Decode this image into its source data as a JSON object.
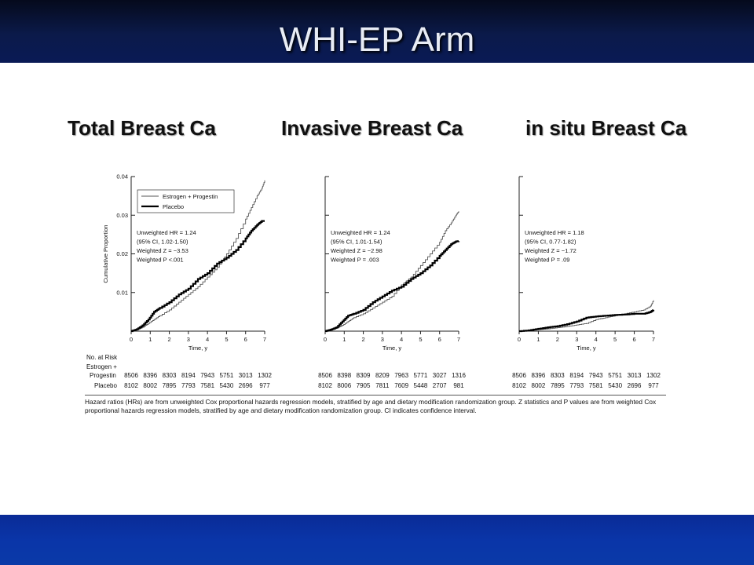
{
  "slide": {
    "title": "WHI-EP Arm"
  },
  "headings": [
    "Total Breast Ca",
    "Invasive Breast Ca",
    "in situ Breast Ca"
  ],
  "risk_table": {
    "label": "No. at Risk",
    "group1_line1": "Estrogen +",
    "group1_line2": "Progestin",
    "group2": "Placebo",
    "panels": [
      {
        "ep": [
          "8506",
          "8396",
          "8303",
          "8194",
          "7943",
          "5751",
          "3013",
          "1302"
        ],
        "placebo": [
          "8102",
          "8002",
          "7895",
          "7793",
          "7581",
          "5430",
          "2696",
          "977"
        ]
      },
      {
        "ep": [
          "8506",
          "8398",
          "8309",
          "8209",
          "7963",
          "5771",
          "3027",
          "1316"
        ],
        "placebo": [
          "8102",
          "8006",
          "7905",
          "7811",
          "7609",
          "5448",
          "2707",
          "981"
        ]
      },
      {
        "ep": [
          "8506",
          "8396",
          "8303",
          "8194",
          "7943",
          "5751",
          "3013",
          "1302"
        ],
        "placebo": [
          "8102",
          "8002",
          "7895",
          "7793",
          "7581",
          "5430",
          "2696",
          "977"
        ]
      }
    ]
  },
  "caption": "Hazard ratios (HRs) are from unweighted Cox proportional hazards regression models, stratified by age and dietary modification randomization group. Z statistics and P values are from weighted Cox proportional hazards regression models, stratified by age and dietary modification randomization group. CI indicates confidence interval.",
  "colors": {
    "thin_line": "#555555",
    "thick_line": "#000000",
    "title_bg": "#0b1a4a",
    "footer_bg": "#0a35a8"
  },
  "chart_data": [
    {
      "type": "line",
      "title": "Total Breast Ca",
      "xlabel": "Time, y",
      "ylabel": "Cumulative Proportion",
      "xlim": [
        0,
        7
      ],
      "ylim": [
        0,
        0.04
      ],
      "xticks": [
        "0",
        "1",
        "2",
        "3",
        "4",
        "5",
        "6",
        "7"
      ],
      "yticks": [
        "0.01",
        "0.02",
        "0.03",
        "0.04"
      ],
      "legend": {
        "position": "top-left",
        "entries": [
          "Estrogen + Progestin",
          "Placebo"
        ]
      },
      "annotation": [
        "Unweighted HR = 1.24",
        "(95% CI, 1.02-1.50)",
        "Weighted Z = −3.53",
        "Weighted P <.001"
      ],
      "series": [
        {
          "name": "Estrogen + Progestin",
          "style": "thin",
          "x": [
            0,
            0.3,
            0.6,
            0.9,
            1.2,
            1.5,
            2,
            2.5,
            3,
            3.5,
            4,
            4.5,
            5,
            5.5,
            6,
            6.3,
            6.6,
            6.85,
            7
          ],
          "y": [
            0,
            0.0004,
            0.001,
            0.002,
            0.003,
            0.004,
            0.0055,
            0.0075,
            0.0095,
            0.0115,
            0.014,
            0.0165,
            0.02,
            0.024,
            0.029,
            0.032,
            0.035,
            0.037,
            0.039
          ]
        },
        {
          "name": "Placebo",
          "style": "thick",
          "x": [
            0,
            0.3,
            0.6,
            0.9,
            1.2,
            1.5,
            2,
            2.5,
            3,
            3.5,
            4,
            4.5,
            5,
            5.5,
            6,
            6.3,
            6.6,
            6.85,
            7
          ],
          "y": [
            0,
            0.0005,
            0.0015,
            0.003,
            0.005,
            0.006,
            0.0075,
            0.0095,
            0.011,
            0.0135,
            0.015,
            0.0175,
            0.019,
            0.021,
            0.024,
            0.026,
            0.0275,
            0.0285,
            0.0285
          ]
        }
      ]
    },
    {
      "type": "line",
      "title": "Invasive Breast Ca",
      "xlabel": "Time, y",
      "xlim": [
        0,
        7
      ],
      "ylim": [
        0,
        0.04
      ],
      "xticks": [
        "0",
        "1",
        "2",
        "3",
        "4",
        "5",
        "6",
        "7"
      ],
      "annotation": [
        "Unweighted HR = 1.24",
        "(95% CI, 1.01-1.54)",
        "Weighted Z = −2.98",
        "Weighted P = .003"
      ],
      "series": [
        {
          "name": "Estrogen + Progestin",
          "style": "thin",
          "x": [
            0,
            0.3,
            0.6,
            0.9,
            1.2,
            1.5,
            2,
            2.5,
            3,
            3.5,
            4,
            4.5,
            5,
            5.5,
            6,
            6.3,
            6.6,
            6.85,
            7
          ],
          "y": [
            0,
            0.0003,
            0.0008,
            0.0015,
            0.0025,
            0.0035,
            0.0045,
            0.006,
            0.0075,
            0.009,
            0.012,
            0.014,
            0.017,
            0.02,
            0.023,
            0.026,
            0.028,
            0.03,
            0.031
          ]
        },
        {
          "name": "Placebo",
          "style": "thick",
          "x": [
            0,
            0.3,
            0.6,
            0.9,
            1.2,
            1.5,
            2,
            2.5,
            3,
            3.5,
            4,
            4.5,
            5,
            5.5,
            6,
            6.3,
            6.6,
            6.85,
            7
          ],
          "y": [
            0,
            0.0004,
            0.001,
            0.0025,
            0.004,
            0.0045,
            0.0055,
            0.0075,
            0.009,
            0.0105,
            0.0115,
            0.0135,
            0.015,
            0.017,
            0.0195,
            0.021,
            0.0225,
            0.0232,
            0.0233
          ]
        }
      ]
    },
    {
      "type": "line",
      "title": "in situ Breast Ca",
      "xlabel": "Time, y",
      "xlim": [
        0,
        7
      ],
      "ylim": [
        0,
        0.04
      ],
      "xticks": [
        "0",
        "1",
        "2",
        "3",
        "4",
        "5",
        "6",
        "7"
      ],
      "annotation": [
        "Unweighted HR = 1.18",
        "(95% CI, 0.77-1.82)",
        "Weighted Z = −1.72",
        "Weighted P = .09"
      ],
      "series": [
        {
          "name": "Estrogen + Progestin",
          "style": "thin",
          "x": [
            0,
            0.5,
            1,
            1.5,
            2,
            2.5,
            3,
            3.5,
            4,
            4.5,
            5,
            5.5,
            6,
            6.5,
            6.85,
            7
          ],
          "y": [
            0,
            0.0002,
            0.0004,
            0.0006,
            0.0009,
            0.0012,
            0.0016,
            0.002,
            0.003,
            0.0035,
            0.004,
            0.0045,
            0.005,
            0.0055,
            0.0065,
            0.008
          ]
        },
        {
          "name": "Placebo",
          "style": "thick",
          "x": [
            0,
            0.5,
            1,
            1.5,
            2,
            2.5,
            3,
            3.5,
            4,
            4.5,
            5,
            5.5,
            6,
            6.5,
            6.85,
            7
          ],
          "y": [
            0,
            0.0002,
            0.0006,
            0.001,
            0.0013,
            0.0018,
            0.0025,
            0.0035,
            0.0038,
            0.004,
            0.0042,
            0.0043,
            0.0045,
            0.0045,
            0.005,
            0.0055
          ]
        }
      ]
    }
  ]
}
